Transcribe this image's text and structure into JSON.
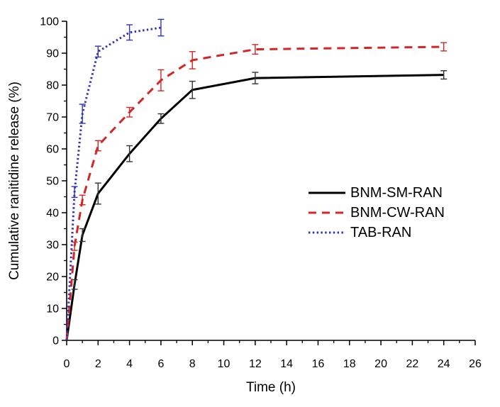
{
  "chart_data": {
    "type": "line",
    "title": "",
    "xlabel": "Time (h)",
    "ylabel": "Cumulative ranitidine release (%)",
    "xlim": [
      0,
      26
    ],
    "ylim": [
      0,
      100
    ],
    "grid": false,
    "axes_color": "#000000",
    "x_ticks": {
      "major": [
        0,
        2,
        4,
        6,
        8,
        10,
        12,
        14,
        16,
        18,
        20,
        22,
        24,
        26
      ],
      "minor": [
        1,
        3,
        5,
        7,
        9,
        11,
        13,
        15,
        17,
        19,
        21,
        23,
        25
      ]
    },
    "y_ticks": {
      "major": [
        0,
        10,
        20,
        30,
        40,
        50,
        60,
        70,
        80,
        90,
        100
      ],
      "minor": [
        5,
        15,
        25,
        35,
        45,
        55,
        65,
        75,
        85,
        95
      ]
    },
    "legend": {
      "position": "center-right"
    },
    "series": [
      {
        "name": "BNM-SM-RAN",
        "color": "#000000",
        "errbar_color": "#333333",
        "style": "solid",
        "x": [
          0,
          0.5,
          1,
          2,
          4,
          6,
          8,
          12,
          24
        ],
        "y": [
          0,
          17.5,
          33,
          46,
          58.5,
          69.5,
          78.5,
          82.2,
          83.2
        ],
        "yerr": [
          0,
          1.5,
          2,
          3.3,
          2.5,
          1.5,
          2.7,
          1.8,
          1.3
        ]
      },
      {
        "name": "BNM-CW-RAN",
        "color": "#d42626",
        "errbar_color": "#d42626",
        "style": "dashed",
        "x": [
          0,
          0.5,
          1,
          2,
          4,
          6,
          8,
          12,
          24
        ],
        "y": [
          0,
          29.5,
          44,
          61,
          71.5,
          81.5,
          87.8,
          91.2,
          92
        ],
        "yerr": [
          0,
          1.3,
          1.5,
          1.6,
          1.5,
          3.3,
          2.7,
          1.5,
          1.3
        ]
      },
      {
        "name": "TAB-RAN",
        "color": "#3333b2",
        "errbar_color": "#3333b2",
        "style": "dotted",
        "x": [
          0,
          0.5,
          1,
          2,
          4,
          6
        ],
        "y": [
          0,
          46.5,
          71,
          90.5,
          96.5,
          98
        ],
        "yerr": [
          0,
          1.7,
          3,
          1.7,
          2.4,
          2.6
        ]
      }
    ]
  }
}
